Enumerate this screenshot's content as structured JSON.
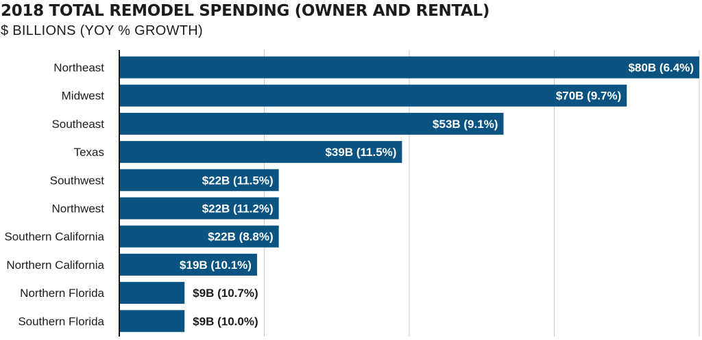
{
  "chart_data": {
    "type": "bar",
    "orientation": "horizontal",
    "title": "2018 TOTAL REMODEL SPENDING (OWNER AND RENTAL)",
    "subtitle": "$ BILLIONS (YOY % GROWTH)",
    "categories": [
      "Northeast",
      "Midwest",
      "Southeast",
      "Texas",
      "Southwest",
      "Northwest",
      "Southern California",
      "Northern California",
      "Northern Florida",
      "Southern Florida"
    ],
    "values": [
      80,
      70,
      53,
      39,
      22,
      22,
      22,
      19,
      9,
      9
    ],
    "data_labels": [
      "$80B (6.4%)",
      "$70B (9.7%)",
      "$53B (9.1%)",
      "$39B (11.5%)",
      "$22B (11.5%)",
      "$22B (11.2%)",
      "$22B (8.8%)",
      "$19B (10.1%)",
      "$9B (10.7%)",
      "$9B (10.0%)"
    ],
    "xlim": [
      0,
      80
    ],
    "x_gridlines": [
      0,
      20,
      40,
      60,
      80
    ],
    "xlabel": "",
    "ylabel": "",
    "grid": true,
    "legend": false,
    "colors": {
      "bar": "#0b5380",
      "label_inside": "#ffffff",
      "label_outside": "#1c1c1c",
      "gridline": "#c8c8c8",
      "axis": "#1c1c1c"
    }
  }
}
